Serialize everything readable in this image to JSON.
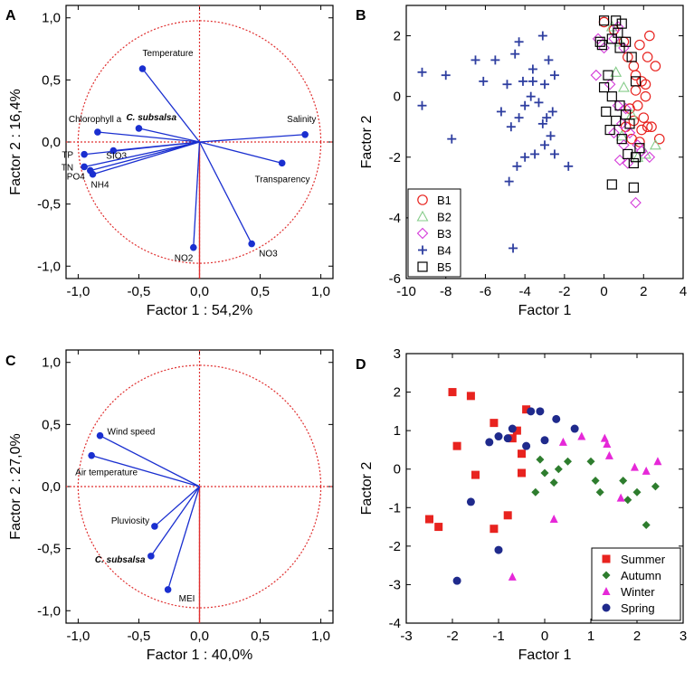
{
  "chart_data": [
    {
      "panel_letter": "A",
      "type": "scatter",
      "subtype": "pca-correlation-circle",
      "xlabel": "Factor 1 : 54,2%",
      "ylabel": "Factor 2 : 16,4%",
      "xlim": [
        -1.1,
        1.1
      ],
      "ylim": [
        -1.1,
        1.1
      ],
      "xticks": [
        "-1,0",
        "-0,5",
        "0,0",
        "0,5",
        "1,0"
      ],
      "yticks": [
        "1,0",
        "0,5",
        "0,0",
        "-0,5",
        "-1,0"
      ],
      "variables": [
        {
          "name": "Temperature",
          "x": -0.47,
          "y": 0.59
        },
        {
          "name": "Salinity",
          "x": 0.87,
          "y": 0.06
        },
        {
          "name": "Transparency",
          "x": 0.68,
          "y": -0.17
        },
        {
          "name": "NO3",
          "x": 0.43,
          "y": -0.82
        },
        {
          "name": "NO2",
          "x": -0.05,
          "y": -0.85
        },
        {
          "name": "Chlorophyll a",
          "x": -0.84,
          "y": 0.08
        },
        {
          "name": "C. subsalsa",
          "x": -0.5,
          "y": 0.11
        },
        {
          "name": "SIO3",
          "x": -0.71,
          "y": -0.07
        },
        {
          "name": "TP",
          "x": -0.95,
          "y": -0.1
        },
        {
          "name": "TN",
          "x": -0.95,
          "y": -0.2
        },
        {
          "name": "PO4",
          "x": -0.9,
          "y": -0.23
        },
        {
          "name": "NH4",
          "x": -0.88,
          "y": -0.26
        }
      ]
    },
    {
      "panel_letter": "B",
      "type": "scatter",
      "xlabel": "Factor 1",
      "ylabel": "Factor 2",
      "xlim": [
        -10,
        4
      ],
      "ylim": [
        -6,
        3
      ],
      "xticks": [
        "-10",
        "-8",
        "-6",
        "-4",
        "-2",
        "0",
        "2",
        "4"
      ],
      "yticks": [
        "2",
        "0",
        "-2",
        "-4",
        "-6"
      ],
      "series": [
        {
          "name": "B1",
          "marker": "circle",
          "color": "#e8231f",
          "points": [
            [
              0.0,
              2.45
            ],
            [
              0.5,
              2.2
            ],
            [
              1.0,
              1.8
            ],
            [
              1.2,
              1.3
            ],
            [
              1.5,
              1.0
            ],
            [
              1.8,
              1.7
            ],
            [
              2.2,
              1.3
            ],
            [
              2.6,
              1.0
            ],
            [
              2.3,
              2.0
            ],
            [
              1.6,
              0.2
            ],
            [
              1.9,
              0.5
            ],
            [
              2.1,
              0.0
            ],
            [
              1.7,
              -0.3
            ],
            [
              2.0,
              -0.7
            ],
            [
              2.2,
              -1.0
            ],
            [
              1.5,
              -0.8
            ],
            [
              1.9,
              -1.1
            ],
            [
              2.4,
              -1.0
            ],
            [
              2.8,
              -1.4
            ],
            [
              1.8,
              -1.5
            ],
            [
              1.4,
              -1.4
            ],
            [
              1.1,
              -1.0
            ],
            [
              1.3,
              -0.4
            ],
            [
              1.6,
              0.7
            ],
            [
              2.1,
              0.4
            ]
          ]
        },
        {
          "name": "B2",
          "marker": "triangle",
          "color": "#86cc8a",
          "points": [
            [
              0.4,
              2.3
            ],
            [
              0.8,
              1.8
            ],
            [
              0.6,
              0.8
            ],
            [
              1.0,
              0.3
            ],
            [
              1.4,
              -0.6
            ],
            [
              2.1,
              -1.9
            ],
            [
              2.6,
              -1.6
            ],
            [
              1.7,
              -2.0
            ],
            [
              0.9,
              -1.3
            ]
          ]
        },
        {
          "name": "B3",
          "marker": "diamond",
          "color": "#d43ad9",
          "points": [
            [
              -0.3,
              1.9
            ],
            [
              0.0,
              1.6
            ],
            [
              0.5,
              1.9
            ],
            [
              1.0,
              1.6
            ],
            [
              -0.4,
              0.7
            ],
            [
              0.3,
              0.4
            ],
            [
              0.7,
              -0.3
            ],
            [
              1.1,
              -0.4
            ],
            [
              0.9,
              -0.9
            ],
            [
              1.3,
              -1.2
            ],
            [
              1.0,
              -1.6
            ],
            [
              0.8,
              -2.1
            ],
            [
              1.2,
              -2.2
            ],
            [
              1.7,
              -1.6
            ],
            [
              1.9,
              -1.8
            ],
            [
              2.3,
              -2.0
            ],
            [
              0.5,
              -1.2
            ],
            [
              1.6,
              -3.5
            ],
            [
              0.7,
              2.3
            ]
          ]
        },
        {
          "name": "B4",
          "marker": "plus",
          "color": "#2e3ea0",
          "points": [
            [
              -9.2,
              0.8
            ],
            [
              -9.2,
              -0.3
            ],
            [
              -8.0,
              0.7
            ],
            [
              -7.7,
              -1.4
            ],
            [
              -6.5,
              1.2
            ],
            [
              -6.1,
              0.5
            ],
            [
              -5.5,
              1.2
            ],
            [
              -5.2,
              -0.5
            ],
            [
              -4.7,
              -1.0
            ],
            [
              -4.5,
              1.4
            ],
            [
              -4.3,
              1.8
            ],
            [
              -4.1,
              0.5
            ],
            [
              -4.0,
              -0.3
            ],
            [
              -4.3,
              -0.7
            ],
            [
              -4.4,
              -2.3
            ],
            [
              -4.8,
              -2.8
            ],
            [
              -3.6,
              0.9
            ],
            [
              -3.3,
              -0.2
            ],
            [
              -3.1,
              -0.9
            ],
            [
              -3.0,
              -1.6
            ],
            [
              -3.5,
              -1.9
            ],
            [
              -2.8,
              1.2
            ],
            [
              -3.0,
              0.4
            ],
            [
              -2.6,
              -0.5
            ],
            [
              -2.7,
              -1.3
            ],
            [
              -2.5,
              -1.9
            ],
            [
              -3.1,
              2.0
            ],
            [
              -4.9,
              0.4
            ],
            [
              -3.6,
              0.5
            ],
            [
              -4.6,
              -5.0
            ],
            [
              -2.9,
              -0.7
            ],
            [
              -4.0,
              -2.0
            ],
            [
              -1.8,
              -2.3
            ],
            [
              -3.7,
              0.0
            ],
            [
              -2.5,
              0.7
            ]
          ]
        },
        {
          "name": "B5",
          "marker": "square",
          "color": "#000000",
          "points": [
            [
              0.0,
              2.5
            ],
            [
              0.6,
              2.5
            ],
            [
              0.9,
              2.4
            ],
            [
              -0.2,
              1.8
            ],
            [
              0.4,
              1.9
            ],
            [
              0.8,
              1.6
            ],
            [
              1.1,
              1.8
            ],
            [
              1.4,
              1.3
            ],
            [
              1.6,
              0.5
            ],
            [
              0.2,
              0.7
            ],
            [
              0.0,
              0.3
            ],
            [
              0.4,
              0.0
            ],
            [
              0.8,
              -0.3
            ],
            [
              1.1,
              -0.6
            ],
            [
              0.6,
              -0.8
            ],
            [
              0.3,
              -1.1
            ],
            [
              0.9,
              -1.4
            ],
            [
              1.2,
              -1.9
            ],
            [
              1.6,
              -2.0
            ],
            [
              1.8,
              -1.7
            ],
            [
              1.5,
              -2.2
            ],
            [
              0.4,
              -2.9
            ],
            [
              1.5,
              -3.0
            ],
            [
              -0.1,
              1.7
            ],
            [
              0.7,
              2.1
            ],
            [
              1.3,
              -0.9
            ],
            [
              0.1,
              -0.5
            ]
          ]
        }
      ]
    },
    {
      "panel_letter": "C",
      "type": "scatter",
      "subtype": "pca-correlation-circle",
      "xlabel": "Factor 1 : 40,0%",
      "ylabel": "Factor 2 : 27,0%",
      "xlim": [
        -1.1,
        1.1
      ],
      "ylim": [
        -1.1,
        1.1
      ],
      "xticks": [
        "-1,0",
        "-0,5",
        "0,0",
        "0,5",
        "1,0"
      ],
      "yticks": [
        "1,0",
        "0,5",
        "0,0",
        "-0,5",
        "-1,0"
      ],
      "variables": [
        {
          "name": "Wind speed",
          "x": -0.82,
          "y": 0.41
        },
        {
          "name": "Air temperature",
          "x": -0.89,
          "y": 0.25
        },
        {
          "name": "Pluviosity",
          "x": -0.37,
          "y": -0.32
        },
        {
          "name": "C. subsalsa",
          "x": -0.4,
          "y": -0.56
        },
        {
          "name": "MEI",
          "x": -0.26,
          "y": -0.83
        }
      ]
    },
    {
      "panel_letter": "D",
      "type": "scatter",
      "xlabel": "Factor 1",
      "ylabel": "Factor 2",
      "xlim": [
        -3,
        3
      ],
      "ylim": [
        -4,
        3
      ],
      "xticks": [
        "-3",
        "-2",
        "-1",
        "0",
        "1",
        "2",
        "3"
      ],
      "yticks": [
        "3",
        "2",
        "1",
        "0",
        "-1",
        "-2",
        "-3",
        "-4"
      ],
      "series": [
        {
          "name": "Summer",
          "marker": "square",
          "color": "#e8231f",
          "points": [
            [
              -2.0,
              2.0
            ],
            [
              -1.6,
              1.9
            ],
            [
              -0.4,
              1.55
            ],
            [
              -1.1,
              1.2
            ],
            [
              -0.6,
              1.0
            ],
            [
              -1.9,
              0.6
            ],
            [
              -0.7,
              0.8
            ],
            [
              -0.5,
              0.4
            ],
            [
              -1.5,
              -0.15
            ],
            [
              -0.5,
              -0.1
            ],
            [
              -0.8,
              -1.2
            ],
            [
              -1.1,
              -1.55
            ],
            [
              -2.5,
              -1.3
            ],
            [
              -2.3,
              -1.5
            ]
          ]
        },
        {
          "name": "Autumn",
          "marker": "diamond",
          "color": "#2e7d2e",
          "points": [
            [
              -0.1,
              0.25
            ],
            [
              0.0,
              -0.1
            ],
            [
              0.3,
              0.0
            ],
            [
              0.2,
              -0.35
            ],
            [
              0.5,
              0.2
            ],
            [
              1.0,
              0.2
            ],
            [
              1.1,
              -0.3
            ],
            [
              1.2,
              -0.6
            ],
            [
              1.7,
              -0.3
            ],
            [
              1.8,
              -0.8
            ],
            [
              2.0,
              -0.6
            ],
            [
              2.2,
              -1.45
            ],
            [
              2.4,
              -0.45
            ],
            [
              -0.2,
              -0.6
            ]
          ]
        },
        {
          "name": "Winter",
          "marker": "triangle",
          "color": "#e628d8",
          "points": [
            [
              0.8,
              0.85
            ],
            [
              1.3,
              0.8
            ],
            [
              1.35,
              0.65
            ],
            [
              1.4,
              0.35
            ],
            [
              1.95,
              0.05
            ],
            [
              2.2,
              -0.05
            ],
            [
              2.45,
              0.2
            ],
            [
              1.65,
              -0.75
            ],
            [
              0.4,
              0.7
            ],
            [
              0.2,
              -1.3
            ],
            [
              -0.7,
              -2.8
            ]
          ]
        },
        {
          "name": "Spring",
          "marker": "circle",
          "color": "#1f2a8c",
          "points": [
            [
              -0.3,
              1.5
            ],
            [
              -0.1,
              1.5
            ],
            [
              -0.7,
              1.05
            ],
            [
              0.25,
              1.3
            ],
            [
              0.65,
              1.05
            ],
            [
              -1.0,
              0.85
            ],
            [
              -1.2,
              0.7
            ],
            [
              -0.8,
              0.8
            ],
            [
              0.0,
              0.75
            ],
            [
              -0.4,
              0.6
            ],
            [
              -1.6,
              -0.85
            ],
            [
              -1.0,
              -2.1
            ],
            [
              -1.9,
              -2.9
            ]
          ]
        }
      ]
    }
  ]
}
